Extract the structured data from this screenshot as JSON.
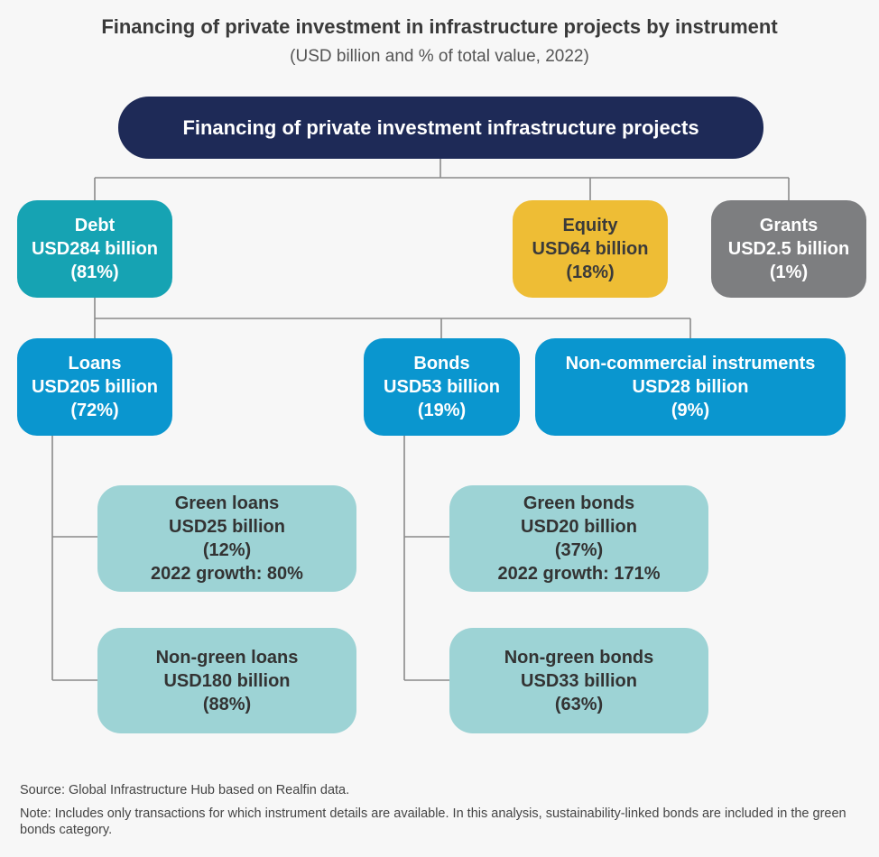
{
  "title": "Financing of private investment in infrastructure projects by instrument",
  "subtitle": "(USD billion and % of total value, 2022)",
  "root": {
    "label": "Financing of private investment infrastructure projects"
  },
  "debt": {
    "name": "Debt",
    "value": "USD284 billion",
    "share": "(81%)"
  },
  "equity": {
    "name": "Equity",
    "value": "USD64 billion",
    "share": "(18%)"
  },
  "grants": {
    "name": "Grants",
    "value": "USD2.5 billion",
    "share": "(1%)"
  },
  "loans": {
    "name": "Loans",
    "value": "USD205 billion",
    "share": "(72%)"
  },
  "bonds": {
    "name": "Bonds",
    "value": "USD53 billion",
    "share": "(19%)"
  },
  "noncommercial": {
    "name": "Non-commercial instruments",
    "value": "USD28 billion",
    "share": "(9%)"
  },
  "green_loans": {
    "name": "Green loans",
    "value": "USD25 billion",
    "share": "(12%)",
    "growth": "2022 growth: 80%"
  },
  "non_green_loans": {
    "name": "Non-green loans",
    "value": "USD180 billion",
    "share": "(88%)"
  },
  "green_bonds": {
    "name": "Green bonds",
    "value": "USD20 billion",
    "share": "(37%)",
    "growth": "2022 growth: 171%"
  },
  "non_green_bonds": {
    "name": "Non-green bonds",
    "value": "USD33 billion",
    "share": "(63%)"
  },
  "source": "Source: Global Infrastructure Hub based on Realfin data.",
  "note": "Note: Includes only transactions for which instrument details are available. In this analysis, sustainability-linked bonds are included in the green bonds category.",
  "colors": {
    "root": "#1e2a57",
    "debt": "#16a3b3",
    "equity": "#eebd35",
    "grants": "#7d7e80",
    "level2": "#0a96cf",
    "level3": "#9dd3d5",
    "connector": "#8a8a8a"
  }
}
